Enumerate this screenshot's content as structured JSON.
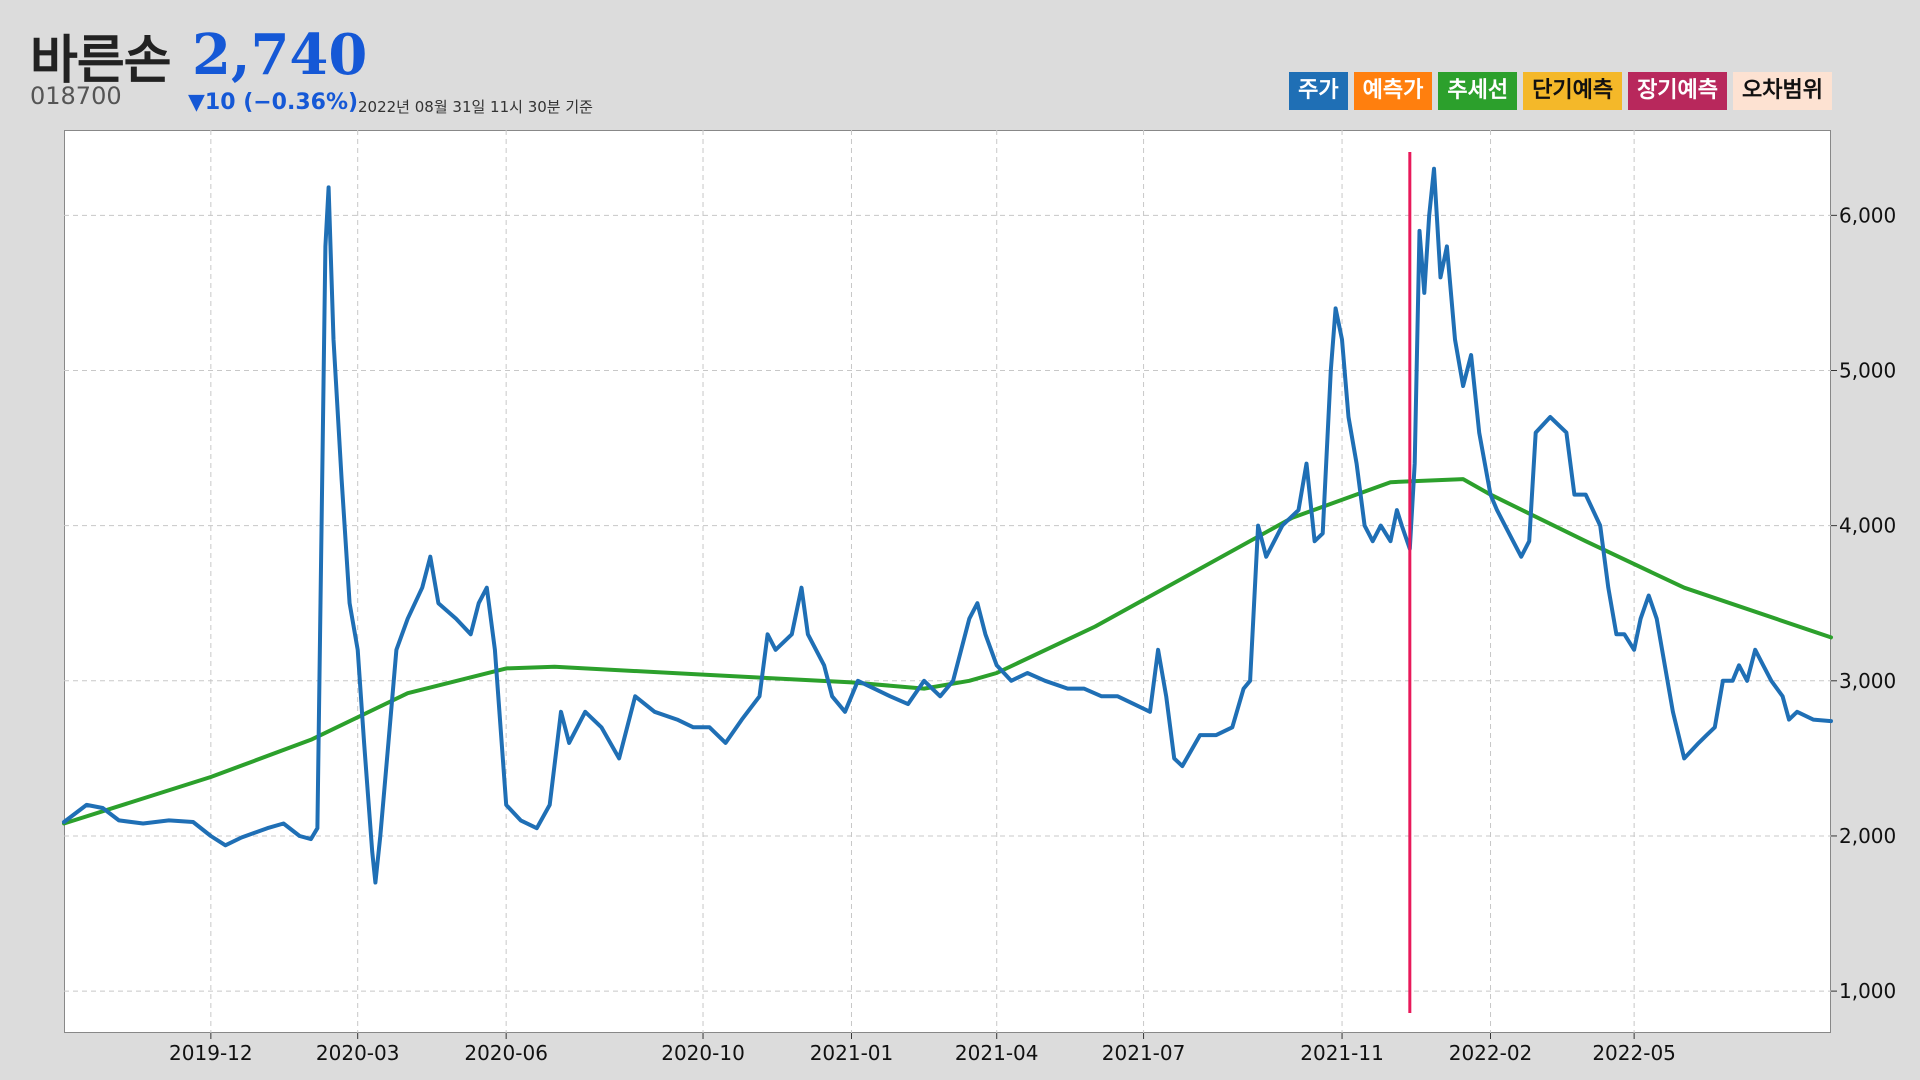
{
  "header": {
    "name": "바른손",
    "price": "2,740",
    "code": "018700",
    "change": "▼10 (−0.36%)",
    "timestamp": "2022년 08월 31일 11시 30분 기준"
  },
  "legend": [
    {
      "label": "주가",
      "bg": "#1f6fb5",
      "fg": "#ffffff"
    },
    {
      "label": "예측가",
      "bg": "#ff7f0e",
      "fg": "#ffffff"
    },
    {
      "label": "추세선",
      "bg": "#2ca02c",
      "fg": "#ffffff"
    },
    {
      "label": "단기예측",
      "bg": "#f4b829",
      "fg": "#111111"
    },
    {
      "label": "장기예측",
      "bg": "#b8285c",
      "fg": "#ffffff"
    },
    {
      "label": "오차범위",
      "bg": "#fde2d2",
      "fg": "#111111"
    }
  ],
  "chart_data": {
    "type": "line",
    "xlim": [
      "2019-09-01",
      "2022-08-31"
    ],
    "ylim": [
      730,
      6550
    ],
    "x_ticks": [
      "2019-12",
      "2020-03",
      "2020-06",
      "2020-10",
      "2021-01",
      "2021-04",
      "2021-07",
      "2021-11",
      "2022-02",
      "2022-05"
    ],
    "y_ticks": [
      1000,
      2000,
      3000,
      4000,
      5000,
      6000
    ],
    "y_tick_labels": [
      "1,000",
      "2,000",
      "3,000",
      "4,000",
      "5,000",
      "6,000"
    ],
    "grid": true,
    "y_axis_side": "right",
    "vertical_marker": {
      "x": "2021-12-13",
      "color": "#e8195a"
    },
    "series": [
      {
        "name": "주가",
        "color": "#1f6fb5",
        "points": [
          [
            "2019-09-01",
            2090
          ],
          [
            "2019-09-15",
            2200
          ],
          [
            "2019-09-25",
            2180
          ],
          [
            "2019-10-05",
            2100
          ],
          [
            "2019-10-20",
            2080
          ],
          [
            "2019-11-05",
            2100
          ],
          [
            "2019-11-20",
            2090
          ],
          [
            "2019-12-01",
            2000
          ],
          [
            "2019-12-10",
            1940
          ],
          [
            "2019-12-20",
            1990
          ],
          [
            "2020-01-05",
            2050
          ],
          [
            "2020-01-15",
            2080
          ],
          [
            "2020-01-25",
            2000
          ],
          [
            "2020-02-01",
            1980
          ],
          [
            "2020-02-05",
            2050
          ],
          [
            "2020-02-10",
            5800
          ],
          [
            "2020-02-12",
            6180
          ],
          [
            "2020-02-15",
            5200
          ],
          [
            "2020-02-20",
            4300
          ],
          [
            "2020-02-25",
            3500
          ],
          [
            "2020-03-01",
            3200
          ],
          [
            "2020-03-05",
            2600
          ],
          [
            "2020-03-10",
            1900
          ],
          [
            "2020-03-12",
            1700
          ],
          [
            "2020-03-15",
            2000
          ],
          [
            "2020-03-20",
            2600
          ],
          [
            "2020-03-25",
            3200
          ],
          [
            "2020-04-01",
            3400
          ],
          [
            "2020-04-10",
            3600
          ],
          [
            "2020-04-15",
            3800
          ],
          [
            "2020-04-20",
            3500
          ],
          [
            "2020-05-01",
            3400
          ],
          [
            "2020-05-10",
            3300
          ],
          [
            "2020-05-15",
            3500
          ],
          [
            "2020-05-20",
            3600
          ],
          [
            "2020-05-25",
            3200
          ],
          [
            "2020-06-01",
            2200
          ],
          [
            "2020-06-10",
            2100
          ],
          [
            "2020-06-20",
            2050
          ],
          [
            "2020-06-28",
            2200
          ],
          [
            "2020-07-05",
            2800
          ],
          [
            "2020-07-10",
            2600
          ],
          [
            "2020-07-20",
            2800
          ],
          [
            "2020-07-30",
            2700
          ],
          [
            "2020-08-10",
            2500
          ],
          [
            "2020-08-20",
            2900
          ],
          [
            "2020-09-01",
            2800
          ],
          [
            "2020-09-15",
            2750
          ],
          [
            "2020-09-25",
            2700
          ],
          [
            "2020-10-05",
            2700
          ],
          [
            "2020-10-15",
            2600
          ],
          [
            "2020-10-25",
            2750
          ],
          [
            "2020-11-05",
            2900
          ],
          [
            "2020-11-10",
            3300
          ],
          [
            "2020-11-15",
            3200
          ],
          [
            "2020-11-25",
            3300
          ],
          [
            "2020-12-01",
            3600
          ],
          [
            "2020-12-05",
            3300
          ],
          [
            "2020-12-10",
            3200
          ],
          [
            "2020-12-15",
            3100
          ],
          [
            "2020-12-20",
            2900
          ],
          [
            "2020-12-28",
            2800
          ],
          [
            "2021-01-05",
            3000
          ],
          [
            "2021-01-15",
            2950
          ],
          [
            "2021-01-25",
            2900
          ],
          [
            "2021-02-05",
            2850
          ],
          [
            "2021-02-15",
            3000
          ],
          [
            "2021-02-25",
            2900
          ],
          [
            "2021-03-05",
            3000
          ],
          [
            "2021-03-10",
            3200
          ],
          [
            "2021-03-15",
            3400
          ],
          [
            "2021-03-20",
            3500
          ],
          [
            "2021-03-25",
            3300
          ],
          [
            "2021-04-01",
            3100
          ],
          [
            "2021-04-10",
            3000
          ],
          [
            "2021-04-20",
            3050
          ],
          [
            "2021-05-01",
            3000
          ],
          [
            "2021-05-15",
            2950
          ],
          [
            "2021-05-25",
            2950
          ],
          [
            "2021-06-05",
            2900
          ],
          [
            "2021-06-15",
            2900
          ],
          [
            "2021-06-25",
            2850
          ],
          [
            "2021-07-05",
            2800
          ],
          [
            "2021-07-10",
            3200
          ],
          [
            "2021-07-15",
            2900
          ],
          [
            "2021-07-20",
            2500
          ],
          [
            "2021-07-25",
            2450
          ],
          [
            "2021-08-05",
            2650
          ],
          [
            "2021-08-15",
            2650
          ],
          [
            "2021-08-25",
            2700
          ],
          [
            "2021-09-01",
            2950
          ],
          [
            "2021-09-05",
            3000
          ],
          [
            "2021-09-10",
            4000
          ],
          [
            "2021-09-15",
            3800
          ],
          [
            "2021-09-25",
            4000
          ],
          [
            "2021-10-05",
            4100
          ],
          [
            "2021-10-10",
            4400
          ],
          [
            "2021-10-15",
            3900
          ],
          [
            "2021-10-20",
            3950
          ],
          [
            "2021-10-25",
            5000
          ],
          [
            "2021-10-28",
            5400
          ],
          [
            "2021-11-01",
            5200
          ],
          [
            "2021-11-05",
            4700
          ],
          [
            "2021-11-10",
            4400
          ],
          [
            "2021-11-15",
            4000
          ],
          [
            "2021-11-20",
            3900
          ],
          [
            "2021-11-25",
            4000
          ],
          [
            "2021-12-01",
            3900
          ],
          [
            "2021-12-05",
            4100
          ],
          [
            "2021-12-08",
            4000
          ],
          [
            "2021-12-13",
            3850
          ],
          [
            "2021-12-16",
            4400
          ],
          [
            "2021-12-19",
            5900
          ],
          [
            "2021-12-22",
            5500
          ],
          [
            "2021-12-25",
            6000
          ],
          [
            "2021-12-28",
            6300
          ],
          [
            "2022-01-01",
            5600
          ],
          [
            "2022-01-05",
            5800
          ],
          [
            "2022-01-10",
            5200
          ],
          [
            "2022-01-15",
            4900
          ],
          [
            "2022-01-20",
            5100
          ],
          [
            "2022-01-25",
            4600
          ],
          [
            "2022-02-01",
            4200
          ],
          [
            "2022-02-05",
            4100
          ],
          [
            "2022-02-10",
            4000
          ],
          [
            "2022-02-15",
            3900
          ],
          [
            "2022-02-20",
            3800
          ],
          [
            "2022-02-25",
            3900
          ],
          [
            "2022-03-01",
            4600
          ],
          [
            "2022-03-10",
            4700
          ],
          [
            "2022-03-20",
            4600
          ],
          [
            "2022-03-25",
            4200
          ],
          [
            "2022-04-01",
            4200
          ],
          [
            "2022-04-10",
            4000
          ],
          [
            "2022-04-15",
            3600
          ],
          [
            "2022-04-20",
            3300
          ],
          [
            "2022-04-25",
            3300
          ],
          [
            "2022-05-01",
            3200
          ],
          [
            "2022-05-05",
            3400
          ],
          [
            "2022-05-10",
            3550
          ],
          [
            "2022-05-15",
            3400
          ],
          [
            "2022-05-20",
            3100
          ],
          [
            "2022-05-25",
            2800
          ],
          [
            "2022-06-01",
            2500
          ],
          [
            "2022-06-10",
            2600
          ],
          [
            "2022-06-15",
            2650
          ],
          [
            "2022-06-20",
            2700
          ],
          [
            "2022-06-25",
            3000
          ],
          [
            "2022-07-01",
            3000
          ],
          [
            "2022-07-05",
            3100
          ],
          [
            "2022-07-10",
            3000
          ],
          [
            "2022-07-15",
            3200
          ],
          [
            "2022-07-20",
            3100
          ],
          [
            "2022-07-25",
            3000
          ],
          [
            "2022-08-01",
            2900
          ],
          [
            "2022-08-05",
            2750
          ],
          [
            "2022-08-10",
            2800
          ],
          [
            "2022-08-20",
            2750
          ],
          [
            "2022-08-31",
            2740
          ]
        ]
      },
      {
        "name": "추세선",
        "color": "#2ca02c",
        "points": [
          [
            "2019-09-01",
            2080
          ],
          [
            "2019-12-01",
            2380
          ],
          [
            "2020-02-01",
            2620
          ],
          [
            "2020-04-01",
            2920
          ],
          [
            "2020-06-01",
            3080
          ],
          [
            "2020-07-01",
            3090
          ],
          [
            "2020-10-01",
            3040
          ],
          [
            "2021-01-01",
            2990
          ],
          [
            "2021-02-15",
            2950
          ],
          [
            "2021-03-15",
            3000
          ],
          [
            "2021-04-01",
            3050
          ],
          [
            "2021-06-01",
            3350
          ],
          [
            "2021-08-01",
            3700
          ],
          [
            "2021-10-01",
            4050
          ],
          [
            "2021-12-01",
            4280
          ],
          [
            "2022-01-15",
            4300
          ],
          [
            "2022-02-01",
            4200
          ],
          [
            "2022-04-01",
            3900
          ],
          [
            "2022-06-01",
            3600
          ],
          [
            "2022-08-31",
            3280
          ]
        ]
      }
    ]
  }
}
